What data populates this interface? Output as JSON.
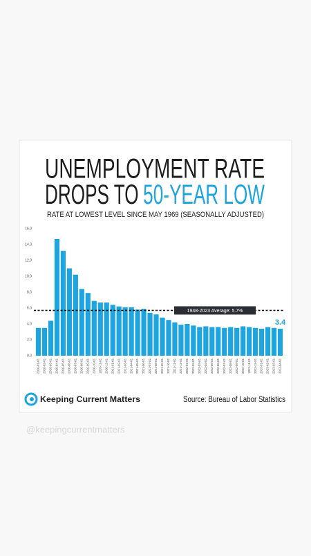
{
  "chart_data": {
    "type": "bar",
    "title": "UNEMPLOYMENT RATE",
    "title2": "DROPS TO",
    "title_highlight": "50-YEAR LOW",
    "subtitle": "RATE AT LOWEST LEVEL SINCE MAY 1969 (SEASONALLY ADJUSTED)",
    "categories": [
      "2020-01-01",
      "2020-02-01",
      "2020-03-01",
      "2020-04-01",
      "2020-05-01",
      "2020-06-01",
      "2020-07-01",
      "2020-08-01",
      "2020-09-01",
      "2020-10-01",
      "2020-11-01",
      "2020-12-01",
      "2021-01-01",
      "2021-02-01",
      "2021-03-01",
      "2021-04-01",
      "2021-05-01",
      "2021-06-01",
      "2021-07-01",
      "2021-08-01",
      "2021-09-01",
      "2021-10-01",
      "2021-11-01",
      "2021-12-01",
      "2022-01-01",
      "2022-02-01",
      "2022-03-01",
      "2022-04-01",
      "2022-05-01",
      "2022-06-01",
      "2022-07-01",
      "2022-08-01",
      "2022-09-01",
      "2022-10-01",
      "2022-11-01",
      "2022-12-01",
      "2023-01-01",
      "2023-02-01",
      "2023-03-01",
      "2023-04-01"
    ],
    "values": [
      3.5,
      3.5,
      4.4,
      14.7,
      13.2,
      11.0,
      10.2,
      8.4,
      7.9,
      6.9,
      6.7,
      6.7,
      6.4,
      6.2,
      6.1,
      6.1,
      5.8,
      5.9,
      5.4,
      5.2,
      4.8,
      4.5,
      4.2,
      3.9,
      4.0,
      3.8,
      3.6,
      3.7,
      3.6,
      3.6,
      3.5,
      3.6,
      3.5,
      3.7,
      3.6,
      3.5,
      3.4,
      3.6,
      3.5,
      3.4
    ],
    "color": "#1ea4de",
    "label_last": true,
    "ylim": [
      0,
      16
    ],
    "yticks": [
      {
        "value": 0,
        "label": "0.0"
      },
      {
        "value": 2,
        "label": "2.0"
      },
      {
        "value": 4,
        "label": "4.0"
      },
      {
        "value": 6,
        "label": "6.0"
      },
      {
        "value": 8,
        "label": "8.0"
      },
      {
        "value": 10,
        "label": "10.0"
      },
      {
        "value": 12,
        "label": "12.0"
      },
      {
        "value": 14,
        "label": "14.0"
      },
      {
        "value": 16,
        "label": "16.0"
      }
    ],
    "grid": false,
    "reference_line": {
      "value": 5.7,
      "label": "1948-2023 Average: 5.7%"
    }
  },
  "brand": "Keeping Current Matters",
  "source": "Source: Bureau of Labor Statistics",
  "watermark": "@keepingcurrentmatters"
}
